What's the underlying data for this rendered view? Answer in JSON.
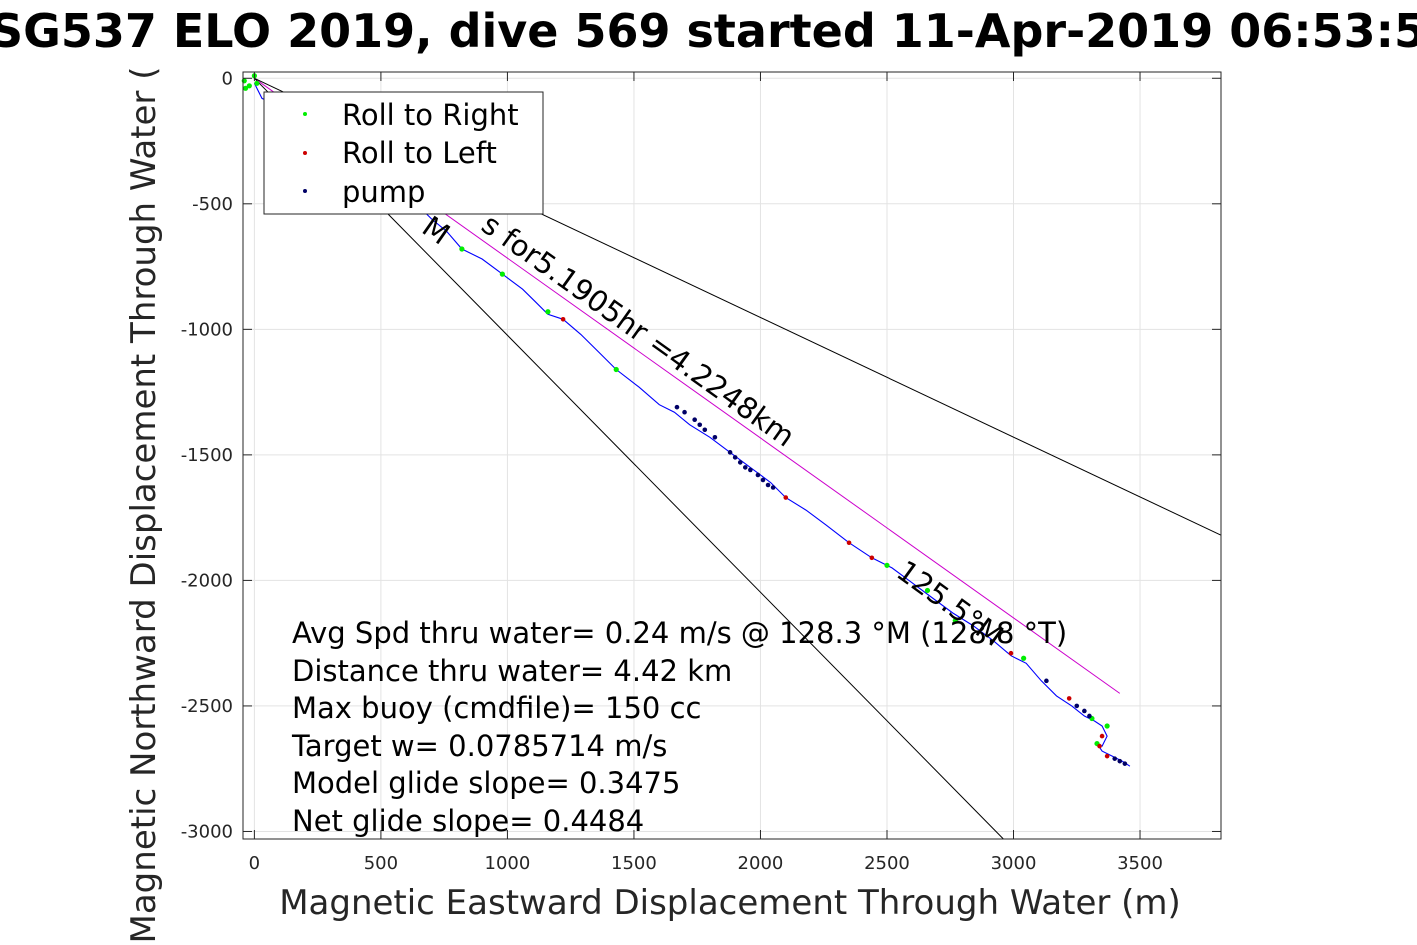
{
  "chart_data": {
    "type": "line",
    "title": "SG537 ELO 2019, dive 569 started 11-Apr-2019 06:53:5",
    "xlabel": "Magnetic Eastward Displacement Through Water (m)",
    "ylabel": "Magnetic Northward Displacement Through Water (",
    "xlim": [
      -45,
      3820
    ],
    "ylim": [
      -3030,
      25
    ],
    "xticks": [
      0,
      500,
      1000,
      1500,
      2000,
      2500,
      3000,
      3500
    ],
    "yticks": [
      0,
      -500,
      -1000,
      -1500,
      -2000,
      -2500,
      -3000
    ],
    "grid": true,
    "legend_position": "top-left",
    "legend": [
      {
        "label": "Roll to Right",
        "color": "#00ee00"
      },
      {
        "label": "Roll to Left",
        "color": "#cc0000"
      },
      {
        "label": "pump",
        "color": "#000066"
      }
    ],
    "annotations": [
      "Avg Spd thru water=  0.24 m/s @ 128.3 °M (128.8 °T)",
      "Distance thru water=  4.42 km",
      "Max buoy (cmdfile)= 150 cc",
      "Target w= 0.0785714 m/s",
      "Model glide slope= 0.3475",
      "Net glide slope= 0.4484"
    ],
    "rotated_labels": [
      {
        "text": "M",
        "anchor": [
          655,
          -610
        ]
      },
      {
        "text": "s for5.1905hr =4.2248km",
        "anchor": [
          890,
          -600
        ]
      },
      {
        "text": "125.5°M",
        "anchor": [
          2530,
          -1980
        ]
      }
    ],
    "series": [
      {
        "name": "track",
        "color": "#0000ff",
        "x": [
          0,
          30,
          120,
          230,
          330,
          400,
          500,
          600,
          700,
          760,
          820,
          900,
          980,
          1060,
          1110,
          1160,
          1220,
          1290,
          1360,
          1430,
          1520,
          1600,
          1660,
          1720,
          1800,
          1880,
          1960,
          2040,
          2100,
          2180,
          2260,
          2350,
          2440,
          2520,
          2600,
          2680,
          2760,
          2840,
          2920,
          2990,
          3050,
          3110,
          3170,
          3230,
          3280,
          3320,
          3350,
          3370,
          3350,
          3330,
          3350,
          3390,
          3430,
          3460
        ],
        "y": [
          -20,
          -80,
          -120,
          -190,
          -250,
          -300,
          -390,
          -460,
          -560,
          -610,
          -680,
          -720,
          -780,
          -840,
          -890,
          -940,
          -960,
          -1020,
          -1090,
          -1160,
          -1230,
          -1300,
          -1330,
          -1380,
          -1430,
          -1490,
          -1550,
          -1610,
          -1670,
          -1720,
          -1780,
          -1850,
          -1910,
          -1950,
          -2010,
          -2070,
          -2130,
          -2180,
          -2240,
          -2300,
          -2330,
          -2400,
          -2460,
          -2500,
          -2540,
          -2560,
          -2580,
          -2620,
          -2660,
          -2650,
          -2680,
          -2700,
          -2720,
          -2740
        ]
      },
      {
        "name": "heading",
        "color": "#cc00cc",
        "x": [
          0,
          3420
        ],
        "y": [
          0,
          -2450
        ]
      },
      {
        "name": "cone-upper",
        "color": "#000000",
        "x": [
          0,
          3820
        ],
        "y": [
          0,
          -1820
        ]
      },
      {
        "name": "cone-lower",
        "color": "#000000",
        "x": [
          0,
          2960
        ],
        "y": [
          0,
          -3030
        ]
      },
      {
        "name": "Roll to Right",
        "color": "#00ee00",
        "x": [
          -40,
          -35,
          -20,
          0,
          10,
          820,
          980,
          1160,
          1430,
          2500,
          2660,
          2770,
          3040,
          3310,
          3370,
          3330
        ],
        "y": [
          -10,
          -40,
          -30,
          10,
          -20,
          -680,
          -780,
          -930,
          -1160,
          -1940,
          -2040,
          -2160,
          -2310,
          -2550,
          -2580,
          -2650
        ]
      },
      {
        "name": "Roll to Left",
        "color": "#cc0000",
        "x": [
          1220,
          2100,
          2350,
          2440,
          2990,
          3220,
          3350,
          3340,
          3370
        ],
        "y": [
          -960,
          -1670,
          -1850,
          -1910,
          -2290,
          -2470,
          -2620,
          -2660,
          -2700
        ]
      },
      {
        "name": "pump",
        "color": "#000066",
        "x": [
          1670,
          1700,
          1740,
          1760,
          1780,
          1820,
          1880,
          1900,
          1920,
          1940,
          1960,
          1990,
          2010,
          2030,
          2050,
          3130,
          3250,
          3280,
          3300,
          3420,
          3440,
          3400
        ],
        "y": [
          -1310,
          -1330,
          -1360,
          -1380,
          -1400,
          -1430,
          -1490,
          -1510,
          -1530,
          -1550,
          -1560,
          -1580,
          -1600,
          -1620,
          -1630,
          -2400,
          -2500,
          -2520,
          -2540,
          -2720,
          -2730,
          -2710
        ]
      }
    ]
  }
}
